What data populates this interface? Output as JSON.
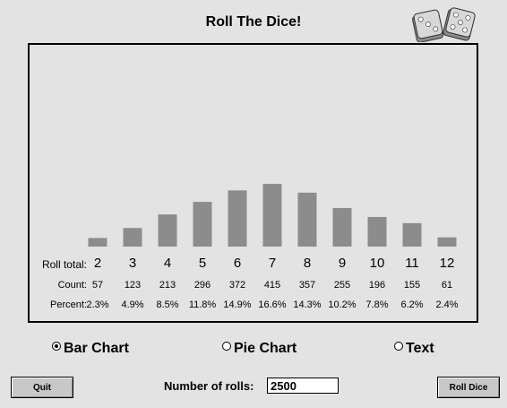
{
  "title": "Roll The Dice!",
  "table": {
    "roll_total_label": "Roll total:",
    "count_label": "Count:",
    "percent_label": "Percent:",
    "totals": [
      "2",
      "3",
      "4",
      "5",
      "6",
      "7",
      "8",
      "9",
      "10",
      "11",
      "12"
    ],
    "counts": [
      "57",
      "123",
      "213",
      "296",
      "372",
      "415",
      "357",
      "255",
      "196",
      "155",
      "61"
    ],
    "percents": [
      "2.3%",
      "4.9%",
      "8.5%",
      "11.8%",
      "14.9%",
      "16.6%",
      "14.3%",
      "10.2%",
      "7.8%",
      "6.2%",
      "2.4%"
    ]
  },
  "chart_data": {
    "type": "bar",
    "categories": [
      "2",
      "3",
      "4",
      "5",
      "6",
      "7",
      "8",
      "9",
      "10",
      "11",
      "12"
    ],
    "values": [
      57,
      123,
      213,
      296,
      372,
      415,
      357,
      255,
      196,
      155,
      61
    ],
    "title": "",
    "xlabel": "",
    "ylabel": "",
    "grid": false,
    "bar_color": "#8c8c8c"
  },
  "view_options": {
    "bar_chart": "Bar Chart",
    "pie_chart": "Pie Chart",
    "text": "Text",
    "selected": "bar_chart"
  },
  "controls": {
    "quit_label": "Quit",
    "rolls_label": "Number of rolls:",
    "rolls_value": "2500",
    "roll_dice_label": "Roll Dice"
  },
  "icons": {
    "dice": "dice-icon"
  }
}
